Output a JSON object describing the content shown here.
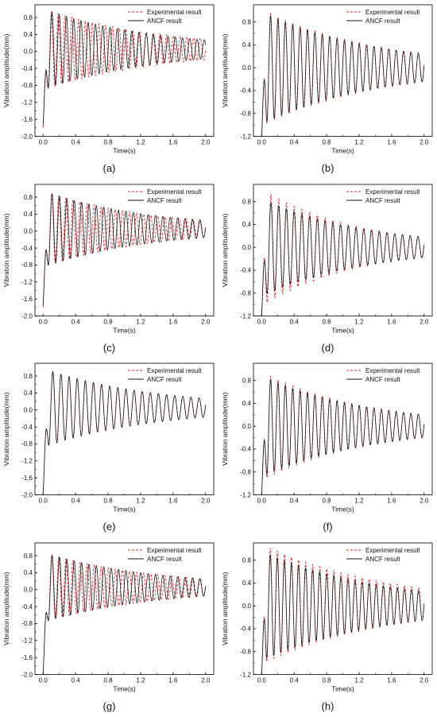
{
  "legend": {
    "experimental": "Experimental result",
    "ancf": "ANCF result"
  },
  "colors": {
    "experimental": "#e8262b",
    "ancf": "#1a1a1a",
    "axis": "#000000"
  },
  "axis_labels": {
    "x": "Time(s)",
    "y": "Vibration amplitude(mm)"
  },
  "chart_data": [
    {
      "id": "a",
      "caption": "(a)",
      "type": "line",
      "title": "",
      "xlabel": "Time(s)",
      "ylabel": "Vibration amplitude(mm)",
      "xlim": [
        -0.1,
        2.1
      ],
      "ylim": [
        -2.0,
        1.1
      ],
      "xticks": [
        "0.0",
        "0.4",
        "0.8",
        "1.2",
        "1.6",
        "2.0"
      ],
      "yticks": [
        "-2.0",
        "-1.6",
        "-1.2",
        "-0.8",
        "-0.4",
        "0.0",
        "0.4",
        "0.8"
      ],
      "legend_position": "top-right",
      "series": [
        {
          "name": "Experimental result",
          "style": "dashed",
          "start_value": -1.8,
          "frequency_hz": 12.0,
          "amp0": 0.95,
          "amp_end": 0.25,
          "offset": 0.05
        },
        {
          "name": "ANCF result",
          "style": "solid",
          "start_value": -1.75,
          "frequency_hz": 11.2,
          "amp0": 0.95,
          "amp_end": 0.22,
          "offset": 0.05
        }
      ]
    },
    {
      "id": "b",
      "caption": "(b)",
      "type": "line",
      "title": "",
      "xlabel": "Time(s)",
      "ylabel": "Vibration amplitude(mm)",
      "xlim": [
        -0.1,
        2.1
      ],
      "ylim": [
        -1.2,
        1.1
      ],
      "xticks": [
        "0.0",
        "0.4",
        "0.8",
        "1.2",
        "1.6",
        "2.0"
      ],
      "yticks": [
        "-1.2",
        "-0.8",
        "-0.4",
        "0.0",
        "0.4",
        "0.8"
      ],
      "legend_position": "top-right",
      "series": [
        {
          "name": "Experimental result",
          "style": "dashed",
          "start_value": -1.2,
          "frequency_hz": 11.0,
          "amp0": 1.02,
          "amp_end": 0.25,
          "offset": 0.0
        },
        {
          "name": "ANCF result",
          "style": "solid",
          "start_value": -1.2,
          "frequency_hz": 11.0,
          "amp0": 0.98,
          "amp_end": 0.24,
          "offset": 0.0
        }
      ]
    },
    {
      "id": "c",
      "caption": "(c)",
      "type": "line",
      "title": "",
      "xlabel": "Time(s)",
      "ylabel": "Vibration amplitude(mm)",
      "xlim": [
        -0.1,
        2.1
      ],
      "ylim": [
        -2.0,
        1.1
      ],
      "xticks": [
        "0.0",
        "0.4",
        "0.8",
        "1.2",
        "1.6",
        "2.0"
      ],
      "yticks": [
        "-2.0",
        "-1.6",
        "-1.2",
        "-0.8",
        "-0.4",
        "0.0",
        "0.4",
        "0.8"
      ],
      "legend_position": "top-right",
      "series": [
        {
          "name": "Experimental result",
          "style": "dashed",
          "start_value": -1.8,
          "frequency_hz": 11.5,
          "amp0": 0.9,
          "amp_end": 0.2,
          "offset": 0.05
        },
        {
          "name": "ANCF result",
          "style": "solid",
          "start_value": -1.75,
          "frequency_hz": 11.0,
          "amp0": 0.9,
          "amp_end": 0.2,
          "offset": 0.05
        }
      ]
    },
    {
      "id": "d",
      "caption": "(d)",
      "type": "line",
      "title": "",
      "xlabel": "Time(s)",
      "ylabel": "Vibration amplitude(mm)",
      "xlim": [
        -0.1,
        2.1
      ],
      "ylim": [
        -1.2,
        1.1
      ],
      "xticks": [
        "0.0",
        "0.4",
        "0.8",
        "1.2",
        "1.6",
        "2.0"
      ],
      "yticks": [
        "-1.2",
        "-0.8",
        "-0.4",
        "0.0",
        "0.4",
        "0.8"
      ],
      "legend_position": "top-right",
      "series": [
        {
          "name": "Experimental result",
          "style": "dashed",
          "start_value": -1.2,
          "frequency_hz": 10.5,
          "amp0": 1.02,
          "amp_end": 0.18,
          "offset": 0.0
        },
        {
          "name": "ANCF result",
          "style": "solid",
          "start_value": -1.2,
          "frequency_hz": 10.5,
          "amp0": 0.85,
          "amp_end": 0.18,
          "offset": 0.0
        }
      ]
    },
    {
      "id": "e",
      "caption": "(e)",
      "type": "line",
      "title": "",
      "xlabel": "Time(s)",
      "ylabel": "Vibration amplitude(mm)",
      "xlim": [
        -0.1,
        2.1
      ],
      "ylim": [
        -2.0,
        1.1
      ],
      "xticks": [
        "0.0",
        "0.4",
        "0.8",
        "1.2",
        "1.6",
        "2.0"
      ],
      "yticks": [
        "-2.0",
        "-1.6",
        "-1.2",
        "-0.8",
        "-0.4",
        "0.0",
        "0.4",
        "0.8"
      ],
      "legend_position": "top-right",
      "series": [
        {
          "name": "Experimental result",
          "style": "dashed",
          "start_value": -2.0,
          "frequency_hz": 10.0,
          "amp0": 0.93,
          "amp_end": 0.22,
          "offset": 0.05
        },
        {
          "name": "ANCF result",
          "style": "solid",
          "start_value": -2.0,
          "frequency_hz": 10.0,
          "amp0": 0.93,
          "amp_end": 0.22,
          "offset": 0.05
        }
      ]
    },
    {
      "id": "f",
      "caption": "(f)",
      "type": "line",
      "title": "",
      "xlabel": "Time(s)",
      "ylabel": "Vibration amplitude(mm)",
      "xlim": [
        -0.1,
        2.1
      ],
      "ylim": [
        -1.2,
        1.1
      ],
      "xticks": [
        "0.0",
        "0.4",
        "0.8",
        "1.2",
        "1.6",
        "2.0"
      ],
      "yticks": [
        "-1.2",
        "-0.8",
        "-0.4",
        "0.0",
        "0.4",
        "0.8"
      ],
      "legend_position": "top-right",
      "series": [
        {
          "name": "Experimental result",
          "style": "dashed",
          "start_value": -1.2,
          "frequency_hz": 11.0,
          "amp0": 0.95,
          "amp_end": 0.2,
          "offset": 0.0
        },
        {
          "name": "ANCF result",
          "style": "solid",
          "start_value": -1.2,
          "frequency_hz": 11.0,
          "amp0": 0.88,
          "amp_end": 0.2,
          "offset": 0.0
        }
      ]
    },
    {
      "id": "g",
      "caption": "(g)",
      "type": "line",
      "title": "",
      "xlabel": "Time(s)",
      "ylabel": "Vibration amplitude(mm)",
      "xlim": [
        -0.1,
        2.1
      ],
      "ylim": [
        -2.0,
        1.1
      ],
      "xticks": [
        "0.0",
        "0.4",
        "0.8",
        "1.2",
        "1.6",
        "2.0"
      ],
      "yticks": [
        "-2.0",
        "-1.6",
        "-1.2",
        "-0.8",
        "-0.4",
        "0.0",
        "0.4",
        "0.8"
      ],
      "legend_position": "top-right",
      "series": [
        {
          "name": "Experimental result",
          "style": "dashed",
          "start_value": -2.0,
          "frequency_hz": 11.5,
          "amp0": 0.82,
          "amp_end": 0.2,
          "offset": 0.05
        },
        {
          "name": "ANCF result",
          "style": "solid",
          "start_value": -2.0,
          "frequency_hz": 11.0,
          "amp0": 0.82,
          "amp_end": 0.2,
          "offset": 0.05
        }
      ]
    },
    {
      "id": "h",
      "caption": "(h)",
      "type": "line",
      "title": "",
      "xlabel": "Time(s)",
      "ylabel": "Vibration amplitude(mm)",
      "xlim": [
        -0.1,
        2.1
      ],
      "ylim": [
        -1.2,
        1.1
      ],
      "xticks": [
        "0.0",
        "0.4",
        "0.8",
        "1.2",
        "1.6",
        "2.0"
      ],
      "yticks": [
        "-1.2",
        "-0.8",
        "-0.4",
        "0.0",
        "0.4",
        "0.8"
      ],
      "legend_position": "top-right",
      "series": [
        {
          "name": "Experimental result",
          "style": "dashed",
          "start_value": -1.2,
          "frequency_hz": 11.5,
          "amp0": 1.05,
          "amp_end": 0.28,
          "offset": 0.03
        },
        {
          "name": "ANCF result",
          "style": "solid",
          "start_value": -1.2,
          "frequency_hz": 11.5,
          "amp0": 0.95,
          "amp_end": 0.25,
          "offset": 0.0
        }
      ]
    }
  ]
}
